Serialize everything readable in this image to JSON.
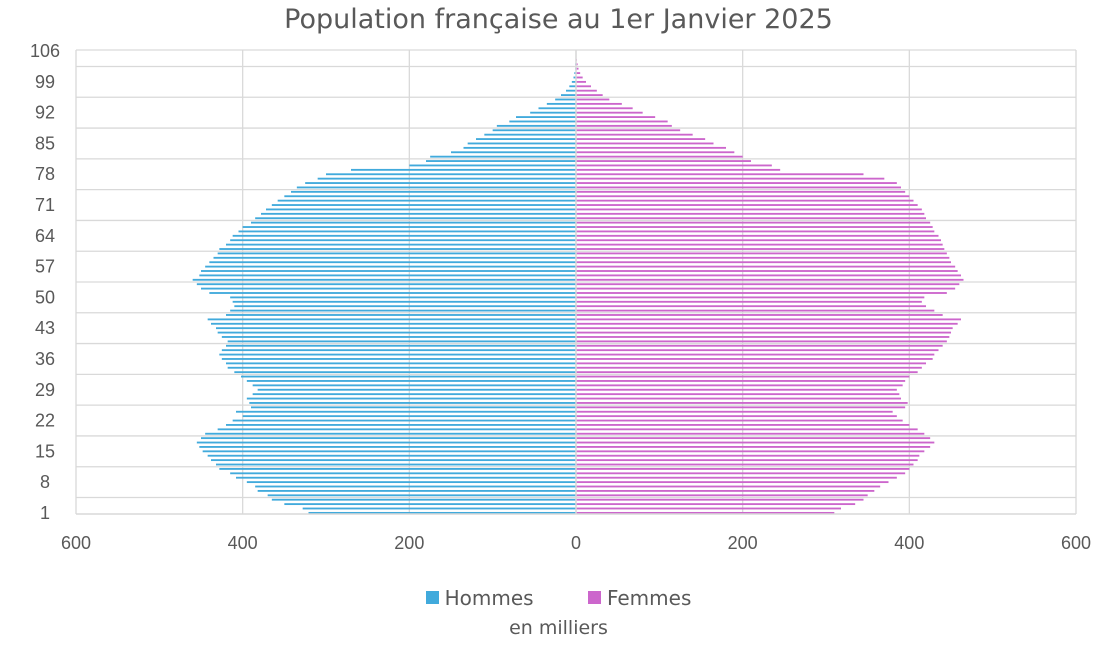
{
  "chart_data": {
    "type": "bar",
    "orientation": "horizontal-population-pyramid",
    "title": "Population française au 1er Janvier 2025",
    "xlabel": "en milliers",
    "ylabel": "",
    "xlim": [
      -600,
      600
    ],
    "x_tick_labels": [
      "600",
      "400",
      "200",
      "0",
      "200",
      "400",
      "600"
    ],
    "x_ticks": [
      -600,
      -400,
      -200,
      0,
      200,
      400,
      600
    ],
    "y_tick_labels": [
      "1",
      "8",
      "15",
      "22",
      "29",
      "36",
      "43",
      "50",
      "57",
      "64",
      "71",
      "78",
      "85",
      "92",
      "99",
      "106"
    ],
    "y_ticks": [
      1,
      8,
      15,
      22,
      29,
      36,
      43,
      50,
      57,
      64,
      71,
      78,
      85,
      92,
      99,
      106
    ],
    "ages": [
      1,
      2,
      3,
      4,
      5,
      6,
      7,
      8,
      9,
      10,
      11,
      12,
      13,
      14,
      15,
      16,
      17,
      18,
      19,
      20,
      21,
      22,
      23,
      24,
      25,
      26,
      27,
      28,
      29,
      30,
      31,
      32,
      33,
      34,
      35,
      36,
      37,
      38,
      39,
      40,
      41,
      42,
      43,
      44,
      45,
      46,
      47,
      48,
      49,
      50,
      51,
      52,
      53,
      54,
      55,
      56,
      57,
      58,
      59,
      60,
      61,
      62,
      63,
      64,
      65,
      66,
      67,
      68,
      69,
      70,
      71,
      72,
      73,
      74,
      75,
      76,
      77,
      78,
      79,
      80,
      81,
      82,
      83,
      84,
      85,
      86,
      87,
      88,
      89,
      90,
      91,
      92,
      93,
      94,
      95,
      96,
      97,
      98,
      99,
      100,
      101,
      102,
      103,
      104,
      105,
      106
    ],
    "grid": true,
    "legend_position": "bottom",
    "series": [
      {
        "name": "Hommes",
        "color": "#41aadc",
        "values": [
          321,
          328,
          350,
          365,
          370,
          382,
          385,
          395,
          408,
          415,
          428,
          432,
          438,
          442,
          448,
          452,
          455,
          450,
          445,
          430,
          420,
          412,
          400,
          408,
          390,
          392,
          395,
          388,
          382,
          388,
          395,
          402,
          410,
          418,
          420,
          425,
          428,
          425,
          420,
          418,
          425,
          430,
          432,
          438,
          442,
          420,
          415,
          410,
          412,
          415,
          440,
          450,
          455,
          460,
          452,
          450,
          445,
          440,
          435,
          430,
          428,
          420,
          415,
          412,
          405,
          400,
          390,
          385,
          378,
          372,
          365,
          358,
          350,
          342,
          335,
          325,
          310,
          300,
          270,
          200,
          180,
          175,
          150,
          135,
          130,
          120,
          110,
          100,
          95,
          80,
          72,
          55,
          45,
          35,
          25,
          18,
          12,
          8,
          5,
          3,
          2,
          1,
          1,
          0.5,
          0.5,
          0.2
        ]
      },
      {
        "name": "Femmes",
        "color": "#cc66cc",
        "values": [
          310,
          318,
          335,
          345,
          350,
          358,
          365,
          375,
          385,
          395,
          400,
          405,
          410,
          412,
          418,
          425,
          430,
          425,
          418,
          410,
          400,
          392,
          385,
          380,
          395,
          398,
          390,
          388,
          385,
          392,
          395,
          400,
          410,
          415,
          420,
          428,
          430,
          435,
          440,
          445,
          448,
          450,
          452,
          458,
          462,
          440,
          430,
          420,
          415,
          418,
          445,
          455,
          460,
          465,
          462,
          458,
          455,
          450,
          448,
          445,
          442,
          440,
          438,
          435,
          430,
          428,
          425,
          420,
          418,
          415,
          410,
          405,
          400,
          395,
          390,
          385,
          370,
          345,
          245,
          235,
          210,
          200,
          190,
          180,
          165,
          155,
          140,
          125,
          115,
          110,
          95,
          80,
          68,
          55,
          40,
          32,
          25,
          18,
          12,
          8,
          5,
          3,
          2,
          1,
          0.5,
          0.2
        ]
      }
    ]
  }
}
